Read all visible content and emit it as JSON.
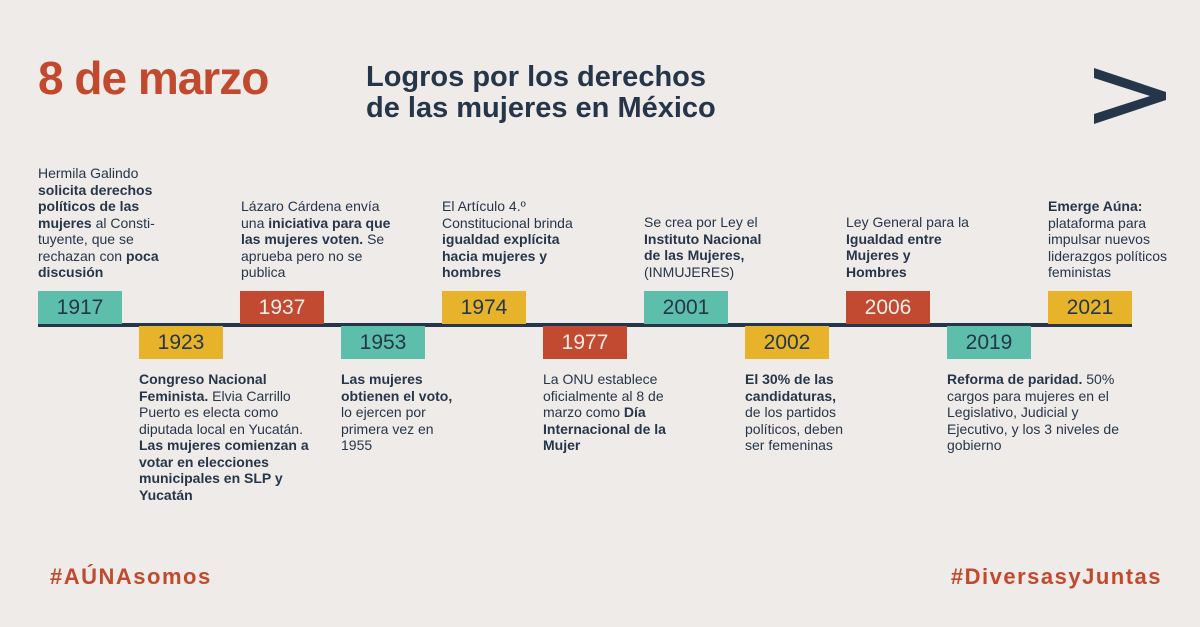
{
  "header": {
    "title": "8 de marzo",
    "subtitle_line1": "Logros por los derechos",
    "subtitle_line2": "de las mujeres en México"
  },
  "colors": {
    "teal": "#5dbfab",
    "yellow": "#e7b32a",
    "red": "#c24a30",
    "navy": "#26364a",
    "background": "#efebe8"
  },
  "logo": {
    "icon": "chevron-right-icon"
  },
  "timeline": {
    "years": [
      "1917",
      "1923",
      "1937",
      "1953",
      "1974",
      "1977",
      "2001",
      "2002",
      "2006",
      "2019",
      "2021"
    ],
    "events": {
      "e1917": {
        "a": "Hermila Galindo",
        "b": "solicita derechos políticos de las mujeres",
        "c": "al Consti-tuyente, que se rechazan con",
        "d": "poca discusión"
      },
      "e1923": {
        "a": "Congreso Nacional Feminista.",
        "b": "Elvia Carrillo Puerto es electa como diputada local en Yucatán.",
        "c": "Las mujeres comienzan a votar en elecciones municipales en SLP y Yucatán"
      },
      "e1937": {
        "a": "Lázaro Cárdena envía una",
        "b": "iniciativa para que las mujeres voten.",
        "c": "Se aprueba pero no se publica"
      },
      "e1953": {
        "a": "Las mujeres obtienen el voto,",
        "b": "lo ejercen por primera vez en 1955"
      },
      "e1974": {
        "a": "El Artículo 4.º Constitucional brinda",
        "b": "igualdad explícita hacia mujeres y hombres"
      },
      "e1977": {
        "a": "La ONU establece oficialmente al 8 de marzo como",
        "b": "Día Internacional de la Mujer"
      },
      "e2001": {
        "a": "Se crea por Ley el",
        "b": "Instituto Nacional de las Mujeres,",
        "c": "(INMUJERES)"
      },
      "e2002": {
        "a": "El 30% de las candidaturas,",
        "b": "de los partidos políticos, deben ser femeninas"
      },
      "e2006": {
        "a": "Ley General para la",
        "b": "Igualdad entre Mujeres y Hombres"
      },
      "e2019": {
        "a": "Reforma de paridad.",
        "b": "50% cargos para mujeres en el Legislativo, Judicial y Ejecutivo, y los 3 niveles de gobierno"
      },
      "e2021": {
        "a": "Emerge Aúna:",
        "b": "plataforma para impulsar nuevos liderazgos políticos feministas"
      }
    }
  },
  "footer": {
    "hashtag_left": "#AÚNAsomos",
    "hashtag_right": "#DiversasyJuntas"
  }
}
